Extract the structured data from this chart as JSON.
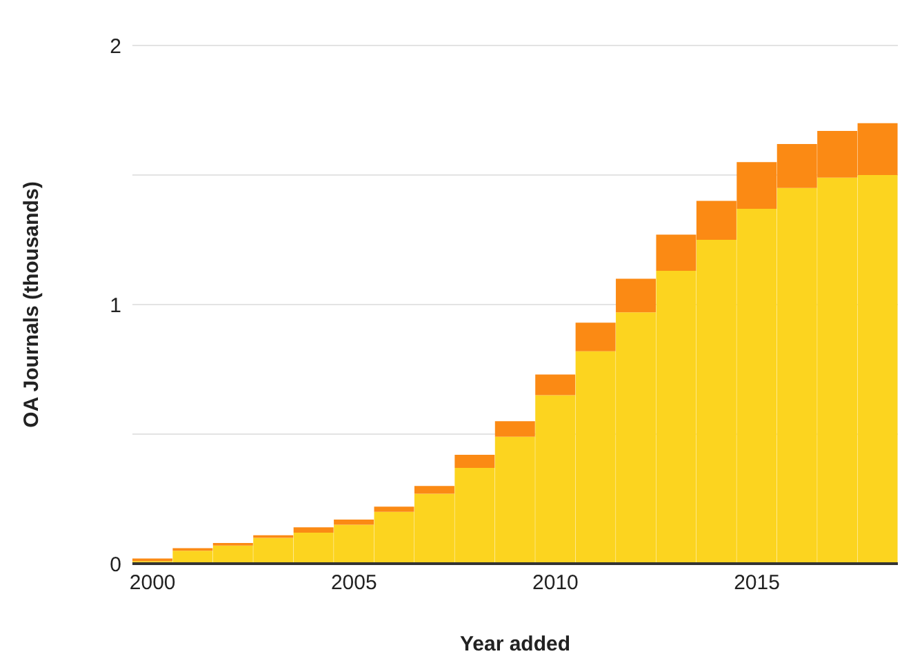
{
  "chart_data": {
    "type": "bar",
    "stacked": true,
    "xlabel": "Year added",
    "ylabel": "OA Journals (thousands)",
    "categories": [
      "2000",
      null,
      null,
      null,
      null,
      "2005",
      null,
      null,
      null,
      null,
      "2010",
      null,
      null,
      null,
      null,
      "2015",
      null,
      null,
      null
    ],
    "series": [
      {
        "color": "#fcd41f",
        "values": [
          0.01,
          0.05,
          0.07,
          0.1,
          0.12,
          0.15,
          0.2,
          0.27,
          0.37,
          0.49,
          0.65,
          0.82,
          0.97,
          1.13,
          1.25,
          1.37,
          1.45,
          1.49,
          1.5
        ]
      },
      {
        "color": "#fb8a14",
        "values": [
          0.01,
          0.01,
          0.01,
          0.01,
          0.02,
          0.02,
          0.02,
          0.03,
          0.05,
          0.06,
          0.08,
          0.11,
          0.13,
          0.14,
          0.15,
          0.18,
          0.17,
          0.18,
          0.2
        ]
      }
    ],
    "ylim": [
      0,
      2
    ],
    "yticks": [
      0,
      {
        "value": 0.5,
        "label": null
      },
      1,
      {
        "value": 1.5,
        "label": null
      },
      2
    ],
    "grid": "y"
  }
}
